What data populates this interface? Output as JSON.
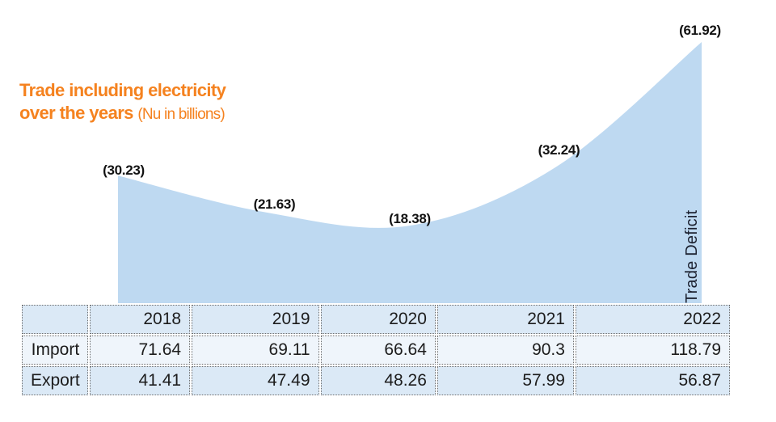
{
  "title": {
    "line1": "Trade including electricity",
    "line2": "over the years",
    "units_note": "(Nu in billions)"
  },
  "chart_data": {
    "type": "area",
    "title": "Trade including electricity over the years",
    "units": "Nu in billions",
    "categories": [
      "2018",
      "2019",
      "2020",
      "2021",
      "2022"
    ],
    "series": [
      {
        "name": "Import",
        "values": [
          71.64,
          69.11,
          66.64,
          90.3,
          118.79
        ]
      },
      {
        "name": "Export",
        "values": [
          41.41,
          47.49,
          48.26,
          57.99,
          56.87
        ]
      },
      {
        "name": "Trade Deficit",
        "values": [
          30.23,
          21.63,
          18.38,
          32.24,
          61.92
        ]
      }
    ],
    "area_series": "Trade Deficit",
    "area_label": "Trade Deficit",
    "point_labels": [
      "(30.23)",
      "(21.63)",
      "(18.38)",
      "(32.24)",
      "(61.92)"
    ],
    "ylim": [
      0,
      72
    ],
    "grid": false,
    "legend": "none",
    "axes_visible": false
  },
  "table": {
    "col_headers": [
      "",
      "2018",
      "2019",
      "2020",
      "2021",
      "2022"
    ],
    "rows": [
      {
        "label": "Import",
        "values": [
          "71.64",
          "69.11",
          "66.64",
          "90.3",
          "118.79"
        ]
      },
      {
        "label": "Export",
        "values": [
          "41.41",
          "47.49",
          "48.26",
          "57.99",
          "56.87"
        ]
      }
    ]
  },
  "colors": {
    "title_orange": "#F5821F",
    "area_fill": "#BED9F1",
    "table_row_blue": "#DBE9F6",
    "table_row_light": "#EFF5FB",
    "point_label_text": "#121212",
    "area_label_text": "#1c2130"
  }
}
